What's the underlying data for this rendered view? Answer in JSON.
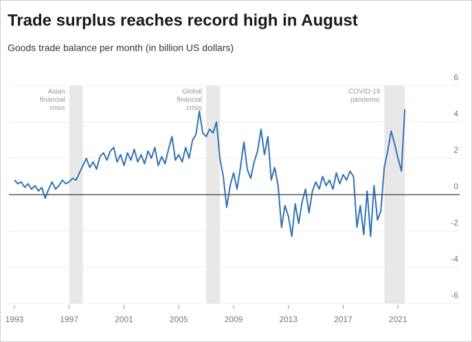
{
  "chart_data": {
    "type": "line",
    "title": "Trade surplus reaches record high in August",
    "subtitle": "Goods trade balance per month (in billion US dollars)",
    "x": [
      1993,
      1993.25,
      1993.5,
      1993.75,
      1994,
      1994.25,
      1994.5,
      1994.75,
      1995,
      1995.25,
      1995.5,
      1995.75,
      1996,
      1996.25,
      1996.5,
      1996.75,
      1997,
      1997.25,
      1997.5,
      1997.75,
      1998,
      1998.25,
      1998.5,
      1998.75,
      1999,
      1999.25,
      1999.5,
      1999.75,
      2000,
      2000.25,
      2000.5,
      2000.75,
      2001,
      2001.25,
      2001.5,
      2001.75,
      2002,
      2002.25,
      2002.5,
      2002.75,
      2003,
      2003.25,
      2003.5,
      2003.75,
      2004,
      2004.25,
      2004.5,
      2004.75,
      2005,
      2005.25,
      2005.5,
      2005.75,
      2006,
      2006.25,
      2006.5,
      2006.75,
      2007,
      2007.25,
      2007.5,
      2007.75,
      2008,
      2008.25,
      2008.5,
      2008.75,
      2009,
      2009.25,
      2009.5,
      2009.75,
      2010,
      2010.25,
      2010.5,
      2010.75,
      2011,
      2011.25,
      2011.5,
      2011.75,
      2012,
      2012.25,
      2012.5,
      2012.75,
      2013,
      2013.25,
      2013.5,
      2013.75,
      2014,
      2014.25,
      2014.5,
      2014.75,
      2015,
      2015.25,
      2015.5,
      2015.75,
      2016,
      2016.25,
      2016.5,
      2016.75,
      2017,
      2017.25,
      2017.5,
      2017.75,
      2018,
      2018.25,
      2018.5,
      2018.75,
      2019,
      2019.25,
      2019.5,
      2019.75,
      2020,
      2020.25,
      2020.5,
      2020.75,
      2021,
      2021.25,
      2021.5
    ],
    "series": [
      {
        "name": "Goods trade balance",
        "color": "#2f72b3",
        "values": [
          0.8,
          0.6,
          0.7,
          0.4,
          0.6,
          0.3,
          0.5,
          0.2,
          0.4,
          -0.2,
          0.3,
          0.7,
          0.3,
          0.5,
          0.8,
          0.6,
          0.7,
          0.9,
          0.8,
          1.2,
          1.6,
          2.0,
          1.5,
          1.8,
          1.4,
          2.1,
          2.3,
          1.9,
          2.4,
          2.6,
          1.8,
          2.2,
          1.6,
          2.3,
          1.9,
          2.5,
          1.8,
          2.2,
          1.7,
          2.4,
          2.0,
          2.6,
          1.6,
          2.1,
          1.7,
          2.5,
          3.2,
          1.9,
          2.2,
          1.8,
          2.6,
          2.0,
          3.0,
          3.3,
          4.6,
          3.4,
          3.2,
          3.6,
          3.4,
          4.0,
          2.0,
          1.0,
          -0.7,
          0.5,
          1.2,
          0.3,
          1.5,
          2.9,
          1.4,
          0.9,
          1.8,
          2.4,
          3.6,
          2.2,
          3.2,
          0.8,
          1.5,
          0.5,
          -1.8,
          -0.6,
          -1.2,
          -2.3,
          -0.5,
          -1.6,
          -0.4,
          0.3,
          -1.0,
          0.2,
          0.7,
          0.3,
          1.0,
          0.5,
          0.8,
          0.3,
          1.2,
          0.6,
          1.1,
          0.8,
          1.3,
          1.0,
          -1.8,
          -0.6,
          -2.2,
          0.2,
          -2.3,
          0.5,
          -1.4,
          -0.9,
          1.5,
          2.4,
          3.5,
          2.8,
          2.0,
          1.3,
          4.7
        ]
      }
    ],
    "xlim": [
      1992.6,
      2025.5
    ],
    "xticks": [
      1993,
      1997,
      2001,
      2005,
      2009,
      2013,
      2017,
      2021
    ],
    "ylim": [
      -6,
      6
    ],
    "yticks": [
      6,
      4,
      2,
      0,
      -2,
      -4,
      -6
    ],
    "grid": true,
    "zero_line_color": "#555555",
    "shade_color": "#e8e8e8",
    "shaded_periods": [
      {
        "range": [
          1997,
          1998
        ],
        "label_lines": [
          "Asian",
          "financial",
          "crisis"
        ]
      },
      {
        "range": [
          2007,
          2008
        ],
        "label_lines": [
          "Global",
          "financial",
          "crisis"
        ]
      },
      {
        "range": [
          2020,
          2021.5
        ],
        "label_lines": [
          "COVID-19",
          "pandemic"
        ]
      }
    ]
  }
}
